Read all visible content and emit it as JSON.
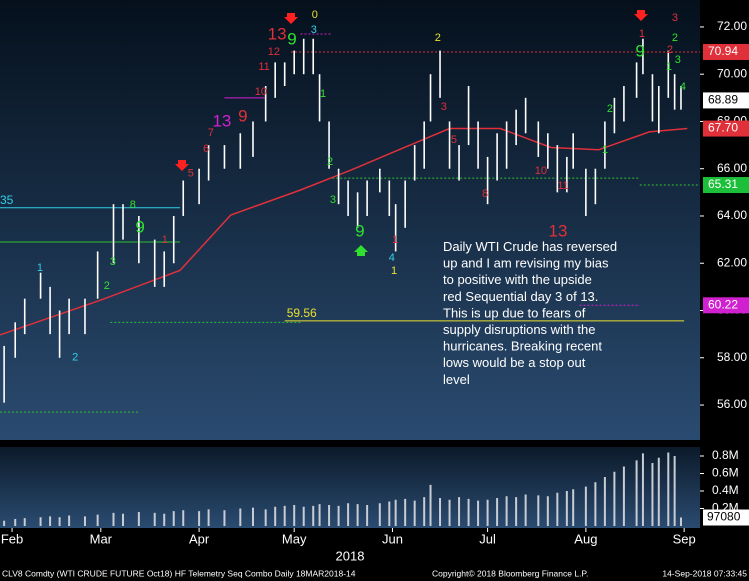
{
  "chart_data": [
    {
      "type": "hilo",
      "color": "#ffffff",
      "x": [
        29.5,
        33,
        36,
        41,
        44,
        47,
        50,
        55,
        59,
        64,
        67,
        72,
        77,
        80,
        83,
        86,
        91,
        94,
        99,
        104,
        108,
        112,
        115,
        118,
        121,
        124,
        127,
        129,
        132,
        135,
        138,
        141,
        144,
        148,
        151,
        153,
        156,
        159,
        162,
        164,
        167,
        170,
        173,
        176,
        179,
        182,
        185,
        188,
        191,
        194,
        198,
        201,
        204,
        207,
        209,
        213,
        216,
        219,
        222,
        225,
        229,
        231,
        234,
        236,
        239,
        241,
        243
      ],
      "high": [
        58.5,
        59.5,
        60.5,
        61.6,
        61,
        60,
        60.5,
        60.5,
        62.5,
        64.5,
        64.5,
        64,
        63,
        62.5,
        64,
        65.5,
        66,
        67,
        67,
        67.5,
        68,
        69.5,
        70.5,
        70.5,
        71,
        71.5,
        71.5,
        70,
        68,
        66,
        65.5,
        65,
        65.5,
        66,
        65.5,
        64.5,
        65.5,
        67,
        68,
        70,
        71,
        68,
        67,
        69.5,
        68,
        66.5,
        67.5,
        68,
        68.5,
        69,
        68,
        67.5,
        67,
        66.5,
        67.5,
        66,
        66,
        68,
        69,
        69.5,
        70.5,
        71.5,
        70,
        69.5,
        71,
        70,
        69.5
      ],
      "low": [
        56.1,
        58,
        59,
        60.5,
        59,
        58,
        59,
        59,
        60.5,
        62,
        63,
        62,
        61,
        61,
        62,
        64,
        64.5,
        65.5,
        66,
        66,
        66.5,
        68,
        69,
        69.5,
        70,
        70,
        70,
        68,
        66,
        64.5,
        64,
        63.5,
        64,
        65,
        64,
        62.5,
        63.5,
        65.5,
        66,
        68,
        69,
        66,
        65.5,
        67,
        66,
        64.5,
        65.5,
        66,
        67,
        67.5,
        66.5,
        66,
        65,
        65,
        66,
        64,
        64.5,
        66,
        67.5,
        68,
        69,
        70,
        68,
        67.5,
        69,
        68.5,
        68.5
      ],
      "ma": {
        "color": "#e0303a",
        "x": [
          28,
          60,
          85,
          101,
          123,
          139,
          154,
          170,
          186,
          202,
          217,
          233,
          245
        ],
        "values": [
          58.96,
          60.44,
          61.7,
          64.04,
          65.1,
          65.95,
          66.8,
          67.7,
          67.7,
          66.9,
          66.8,
          67.56,
          67.7
        ]
      },
      "xlim": [
        28.2,
        249
      ],
      "ylim": [
        54.52,
        73.14
      ],
      "yticks": [
        {
          "value": 56,
          "label": "56.00"
        },
        {
          "value": 58,
          "label": "58.00"
        },
        {
          "value": 60,
          "label": "60.00"
        },
        {
          "value": 62,
          "label": "62.00"
        },
        {
          "value": 64,
          "label": "64.00"
        },
        {
          "value": 66,
          "label": "66.00"
        },
        {
          "value": 68,
          "label": "68.00"
        },
        {
          "value": 70,
          "label": "70.00"
        },
        {
          "value": 72,
          "label": "72.00"
        }
      ],
      "price_tags": [
        {
          "value": 70.94,
          "color": "#e0303a",
          "text_color": "#ffffff"
        },
        {
          "value": 68.89,
          "color": "#ffffff",
          "text_color": "#000000"
        },
        {
          "value": {
            "value": 67.7,
            "label": "67.70"
          },
          "color": "#e0303a",
          "text_color": "#ffffff"
        },
        {
          "value": 65.31,
          "color": "#1bbf3a",
          "text_color": "#ffffff"
        },
        {
          "value": 60.22,
          "color": "#d020d0",
          "text_color": "#ffffff"
        }
      ],
      "levels": [
        {
          "value": 59.56,
          "label": "59.56",
          "color": "#e8e030",
          "from": 118,
          "to": 244,
          "dash": false
        },
        {
          "value": 64.35,
          "label": "35",
          "color": "#30d0e8",
          "from": 28.2,
          "to": 85,
          "dash": false
        },
        {
          "value": 62.9,
          "color": "#30c030",
          "from": 28.2,
          "to": 85,
          "dash": false
        },
        {
          "value": 70.94,
          "color": "#e0303a",
          "from": 120,
          "to": 249,
          "dash": true
        },
        {
          "value": 65.6,
          "color": "#30c030",
          "from": 133,
          "to": 230,
          "dash": true
        },
        {
          "value": 65.31,
          "color": "#30c030",
          "from": 230,
          "to": 249,
          "dash": true
        },
        {
          "value": 59.5,
          "color": "#30c030",
          "from": 63,
          "to": 123,
          "dash": true
        },
        {
          "value": 55.7,
          "color": "#30c030",
          "from": 28.2,
          "to": 72,
          "dash": true
        },
        {
          "value": 71.7,
          "color": "#d020d0",
          "from": 123,
          "to": 133,
          "dash": true
        },
        {
          "value": 69.0,
          "color": "#d020d0",
          "from": 99,
          "to": 112,
          "dash": false
        },
        {
          "value": 60.22,
          "color": "#d020d0",
          "from": 211,
          "to": 230,
          "dash": true
        }
      ],
      "annotations": [
        {
          "text": "13",
          "x": 115.6,
          "y": 71.66,
          "color": "#e0303a"
        },
        {
          "text": "9",
          "x": 120.3,
          "y": 71.45,
          "color": "#30e030"
        },
        {
          "text": "0",
          "x": 127.5,
          "y": 72.5,
          "color": "#e8e030"
        },
        {
          "text": "3",
          "x": 127.2,
          "y": 71.87,
          "color": "#30d0e8"
        },
        {
          "text": "12",
          "x": 114.6,
          "y": 70.94,
          "color": "#e0303a"
        },
        {
          "text": "11",
          "x": 111.5,
          "y": 70.3,
          "color": "#e0303a"
        },
        {
          "text": "10",
          "x": 110.5,
          "y": 69.25,
          "color": "#e0303a"
        },
        {
          "text": "9",
          "x": 104.8,
          "y": 68.19,
          "color": "#e0303a"
        },
        {
          "text": "13",
          "x": 98.2,
          "y": 67.98,
          "color": "#d020d0"
        },
        {
          "text": "7",
          "x": 94.7,
          "y": 67.51,
          "color": "#e0303a"
        },
        {
          "text": "6",
          "x": 93.2,
          "y": 66.83,
          "color": "#e0303a"
        },
        {
          "text": "5",
          "x": 88.4,
          "y": 65.8,
          "color": "#e0303a"
        },
        {
          "text": "1",
          "x": 80.2,
          "y": 62.98,
          "color": "#e0303a"
        },
        {
          "text": "9",
          "x": 72.4,
          "y": 63.49,
          "color": "#30e030"
        },
        {
          "text": "8",
          "x": 70.1,
          "y": 64.46,
          "color": "#30e030"
        },
        {
          "text": "3",
          "x": 63.8,
          "y": 62.05,
          "color": "#30e030"
        },
        {
          "text": "2",
          "x": 61.9,
          "y": 61.04,
          "color": "#30e030"
        },
        {
          "text": "1",
          "x": 40.8,
          "y": 61.8,
          "color": "#30d0e8"
        },
        {
          "text": "2",
          "x": 51.9,
          "y": 58.0,
          "color": "#30d0e8"
        },
        {
          "text": "1",
          "x": 130.1,
          "y": 69.16,
          "color": "#30e030"
        },
        {
          "text": "2",
          "x": 132.3,
          "y": 66.28,
          "color": "#30e030"
        },
        {
          "text": "3",
          "x": 133.2,
          "y": 64.68,
          "color": "#30e030"
        },
        {
          "text": "9",
          "x": 141.7,
          "y": 63.32,
          "color": "#30e030"
        },
        {
          "text": "1",
          "x": 152.8,
          "y": 62.98,
          "color": "#e0303a"
        },
        {
          "text": "4",
          "x": 151.8,
          "y": 62.22,
          "color": "#30d0e8"
        },
        {
          "text": "1",
          "x": 152.5,
          "y": 61.67,
          "color": "#e8e030"
        },
        {
          "text": "13",
          "x": 204.2,
          "y": 63.32,
          "color": "#e0303a"
        },
        {
          "text": "2",
          "x": 166.3,
          "y": 71.53,
          "color": "#e8e030"
        },
        {
          "text": "3",
          "x": 168.2,
          "y": 68.61,
          "color": "#e0303a"
        },
        {
          "text": "5",
          "x": 171.4,
          "y": 67.22,
          "color": "#e0303a"
        },
        {
          "text": "8",
          "x": 181.2,
          "y": 64.93,
          "color": "#e0303a"
        },
        {
          "text": "10",
          "x": 198.8,
          "y": 65.9,
          "color": "#e0303a"
        },
        {
          "text": "11",
          "x": 205.8,
          "y": 65.27,
          "color": "#e0303a"
        },
        {
          "text": "1",
          "x": 219.0,
          "y": 66.79,
          "color": "#30e030"
        },
        {
          "text": "2",
          "x": 220.6,
          "y": 68.53,
          "color": "#30e030"
        },
        {
          "text": "1",
          "x": 230.7,
          "y": 71.7,
          "color": "#e0303a"
        },
        {
          "text": "9",
          "x": 230.1,
          "y": 70.94,
          "color": "#30e030"
        },
        {
          "text": "3",
          "x": 241.1,
          "y": 72.38,
          "color": "#e0303a"
        },
        {
          "text": "2",
          "x": 241.1,
          "y": 71.53,
          "color": "#30e030"
        },
        {
          "text": "2",
          "x": 239.5,
          "y": 71.02,
          "color": "#e0303a"
        },
        {
          "text": "1",
          "x": 239.2,
          "y": 70.3,
          "color": "#30e030"
        },
        {
          "text": "3",
          "x": 242.0,
          "y": 70.6,
          "color": "#30e030"
        },
        {
          "text": "4",
          "x": 243.6,
          "y": 69.46,
          "color": "#30e030"
        }
      ],
      "note": [
        "Daily WTI Crude has reversed",
        "up and I am revising my bias",
        "to positive with the upside",
        "red Sequential day 3 of 13.",
        "This is up due to fears of",
        "supply disruptions with the",
        "hurricanes.  Breaking recent",
        "lows would be a stop out",
        "level"
      ]
    },
    {
      "type": "bar",
      "color": "#c8ccd4",
      "x": [
        29.5,
        33,
        36,
        41,
        44,
        47,
        50,
        55,
        59,
        64,
        67,
        72,
        77,
        80,
        83,
        86,
        91,
        94,
        99,
        104,
        108,
        112,
        115,
        118,
        121,
        124,
        127,
        129,
        132,
        135,
        138,
        141,
        144,
        148,
        151,
        153,
        156,
        159,
        162,
        164,
        167,
        170,
        173,
        176,
        179,
        182,
        185,
        188,
        191,
        194,
        198,
        201,
        204,
        207,
        209,
        213,
        216,
        219,
        222,
        225,
        229,
        231,
        234,
        236,
        239,
        241,
        243
      ],
      "values": [
        60000,
        80000,
        90000,
        100000,
        110000,
        100000,
        120000,
        110000,
        130000,
        150000,
        140000,
        160000,
        150000,
        140000,
        170000,
        180000,
        170000,
        190000,
        180000,
        200000,
        210000,
        190000,
        220000,
        230000,
        240000,
        220000,
        230000,
        250000,
        240000,
        230000,
        260000,
        250000,
        240000,
        260000,
        280000,
        300000,
        310000,
        290000,
        330000,
        470000,
        320000,
        300000,
        330000,
        310000,
        290000,
        300000,
        320000,
        340000,
        330000,
        360000,
        350000,
        340000,
        380000,
        400000,
        420000,
        450000,
        500000,
        560000,
        620000,
        680000,
        750000,
        830000,
        720000,
        780000,
        840000,
        800000,
        97080
      ],
      "xlim": [
        28.2,
        249
      ],
      "ylim": [
        0,
        903000
      ],
      "yticks": [
        {
          "value": 200000,
          "label": "0.2M"
        },
        {
          "value": 400000,
          "label": "0.4M"
        },
        {
          "value": 600000,
          "label": "0.6M"
        },
        {
          "value": 800000,
          "label": "0.8M"
        }
      ],
      "last_tag": 97080,
      "xticks": [
        {
          "value": 32,
          "label": "Feb"
        },
        {
          "value": 60,
          "label": "Mar"
        },
        {
          "value": 91,
          "label": "Apr"
        },
        {
          "value": 121,
          "label": "May"
        },
        {
          "value": 152,
          "label": "Jun"
        },
        {
          "value": 182,
          "label": "Jul"
        },
        {
          "value": 213,
          "label": "Aug"
        },
        {
          "value": 244,
          "label": "Sep"
        }
      ],
      "year": "2018",
      "footer": {
        "left": "CLV8 Comdty (WTI CRUDE FUTURE  Oct18) HF Telemetry Seq Combo  Daily 18MAR2018-14",
        "center": "Copyright© 2018 Bloomberg Finance L.P.",
        "right": "14-Sep-2018 07:33:45"
      }
    }
  ]
}
